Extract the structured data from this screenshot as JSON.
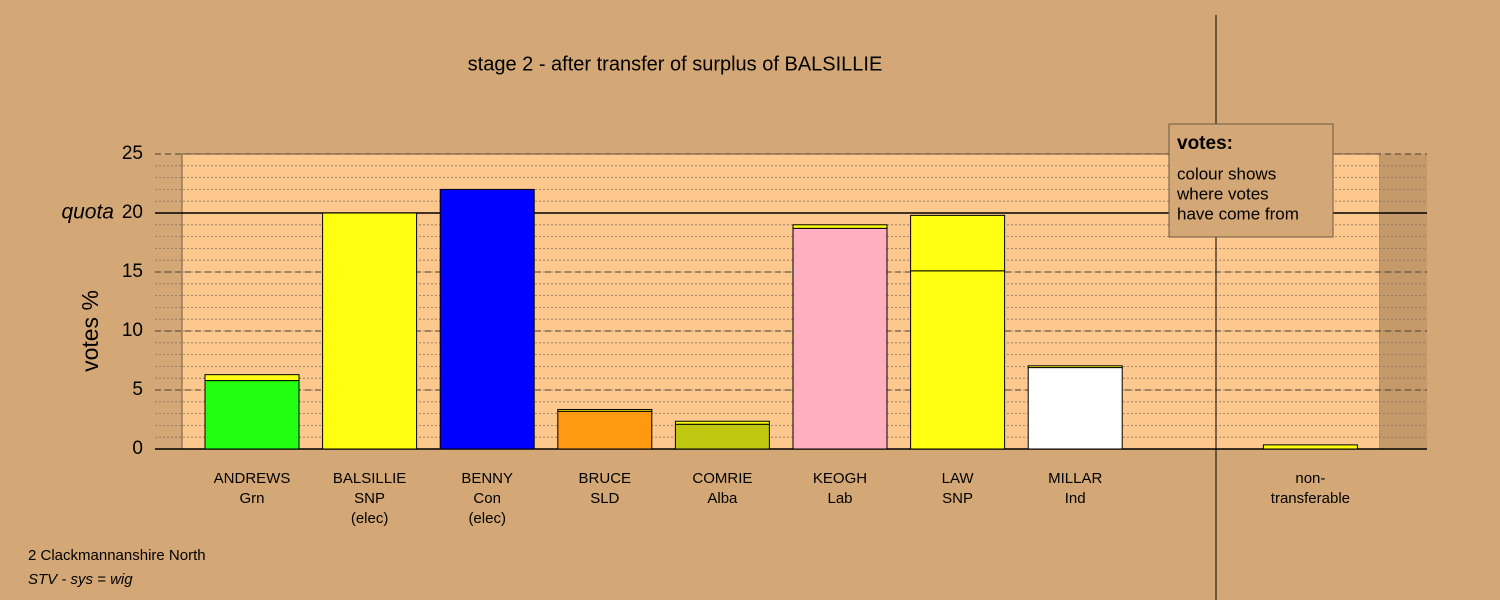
{
  "chart_data": {
    "type": "stacked_bar",
    "title": "stage 2 - after transfer of surplus of BALSILLIE",
    "y_label": "votes %",
    "quota": 20,
    "quota_label": "quota",
    "categories": [
      [
        "ANDREWS",
        "Grn"
      ],
      [
        "BALSILLIE",
        "SNP",
        "(elec)"
      ],
      [
        "BENNY",
        "Con",
        "(elec)"
      ],
      [
        "BRUCE",
        "SLD"
      ],
      [
        "COMRIE",
        "Alba"
      ],
      [
        "KEOGH",
        "Lab"
      ],
      [
        "LAW",
        "SNP"
      ],
      [
        "MILLAR",
        "Ind"
      ],
      null,
      [
        "non-",
        "transferable"
      ]
    ],
    "series": [
      {
        "colors": [
          "#22ff11",
          "#ffff11",
          "#0000ff",
          "#ff9911",
          "#bfc711",
          "#ffb0c0",
          "#ffff11",
          "#ffffff",
          null,
          null
        ],
        "values": [
          5.8,
          20,
          22,
          3.2,
          2.1,
          18.7,
          15.1,
          6.9,
          null,
          null
        ]
      },
      {
        "color": "#ffff11",
        "values": [
          0.5,
          null,
          null,
          0.15,
          0.25,
          0.3,
          4.7,
          0.15,
          null,
          0.35
        ]
      }
    ],
    "ylim": [
      0,
      25
    ],
    "yticks": [
      0,
      5,
      10,
      15,
      20,
      25
    ],
    "minor_grid_step": 1,
    "legend": {
      "title": "votes:",
      "lines": [
        "colour shows",
        "where votes",
        "have come from"
      ]
    },
    "footnotes": [
      "2 Clackmannanshire North",
      "STV - sys = wig"
    ]
  }
}
